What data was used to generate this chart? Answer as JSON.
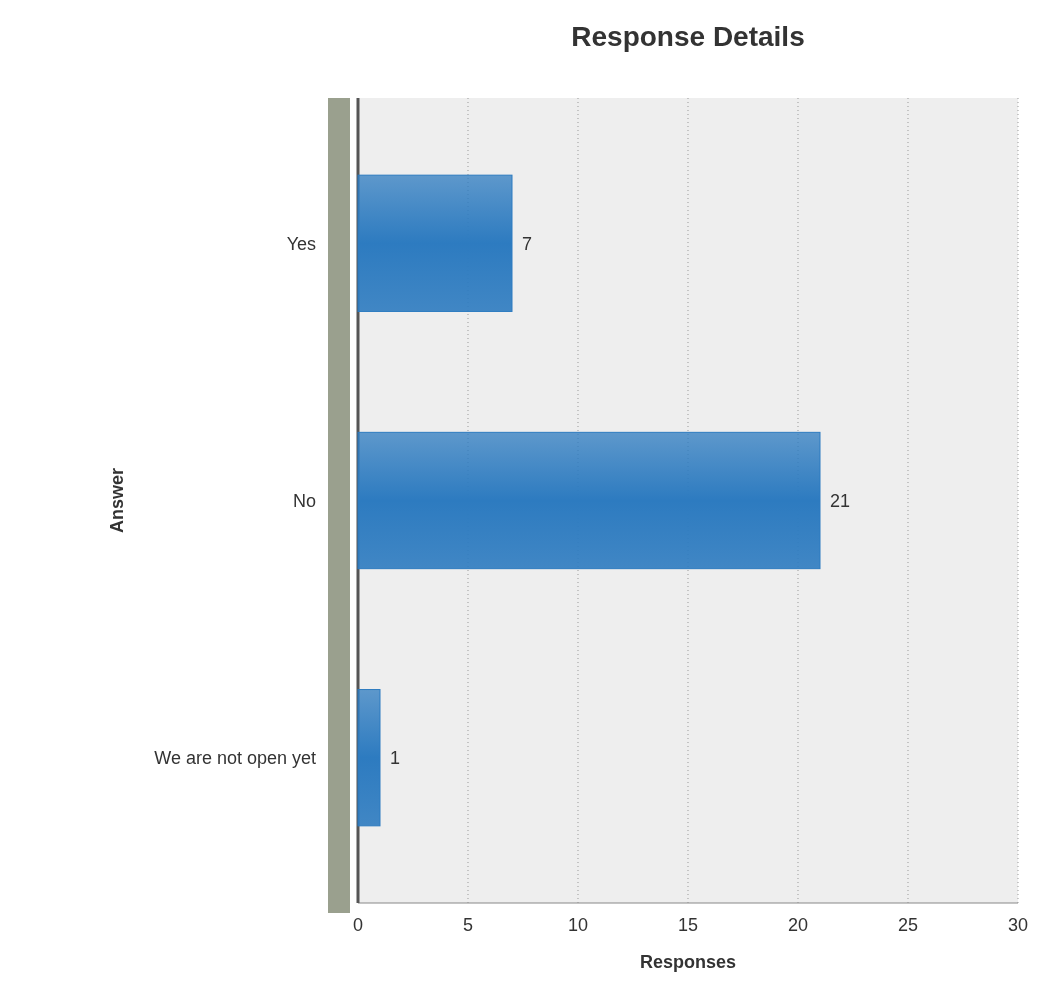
{
  "chart_data": {
    "type": "bar",
    "orientation": "horizontal",
    "title": "Response Details",
    "xlabel": "Responses",
    "ylabel": "Answer",
    "categories": [
      "Yes",
      "No",
      "We are not open yet"
    ],
    "values": [
      7,
      21,
      1
    ],
    "color": "#2d7bc0",
    "xlim": [
      0,
      30
    ],
    "xticks": [
      0,
      5,
      10,
      15,
      20,
      25,
      30
    ],
    "grid": "x",
    "data_labels": true
  }
}
